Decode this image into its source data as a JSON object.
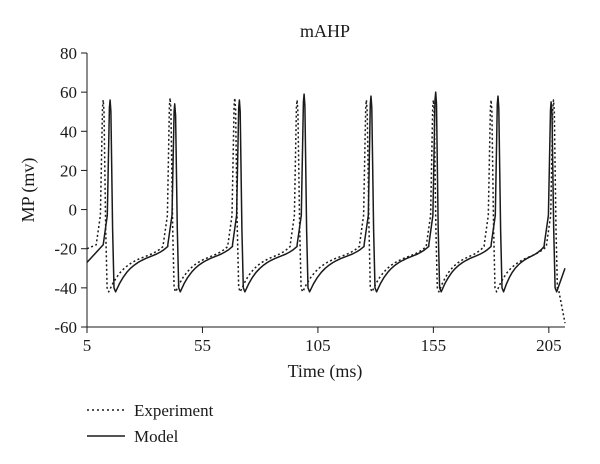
{
  "chart_data": {
    "type": "line",
    "title": "mAHP",
    "xlabel": "Time (ms)",
    "ylabel": "MP (mv)",
    "xlim": [
      5,
      212
    ],
    "ylim": [
      -60,
      80
    ],
    "xticks": [
      5,
      55,
      105,
      155,
      205
    ],
    "yticks": [
      -60,
      -40,
      -20,
      0,
      20,
      40,
      60,
      80
    ],
    "legend_position": "bottom-left",
    "series": [
      {
        "name": "Experiment",
        "style": "dotted",
        "color": "#1a1a1a",
        "start": [
          5,
          -20
        ],
        "spike_times": [
          12,
          41,
          69,
          96,
          126,
          155,
          180,
          207
        ],
        "spike_peaks": [
          56,
          57,
          57,
          56,
          56,
          56,
          56,
          56
        ],
        "trough": -42,
        "pre_spike_level": -18,
        "end": [
          212,
          -58
        ]
      },
      {
        "name": "Model",
        "style": "solid",
        "color": "#1a1a1a",
        "start": [
          5,
          -27
        ],
        "spike_times": [
          15,
          43,
          71,
          99,
          128,
          156,
          183,
          206
        ],
        "spike_peaks": [
          56,
          54,
          56,
          59,
          58,
          60,
          58,
          55
        ],
        "trough": -42,
        "pre_spike_level": -18,
        "end": [
          212,
          -30
        ]
      }
    ]
  }
}
